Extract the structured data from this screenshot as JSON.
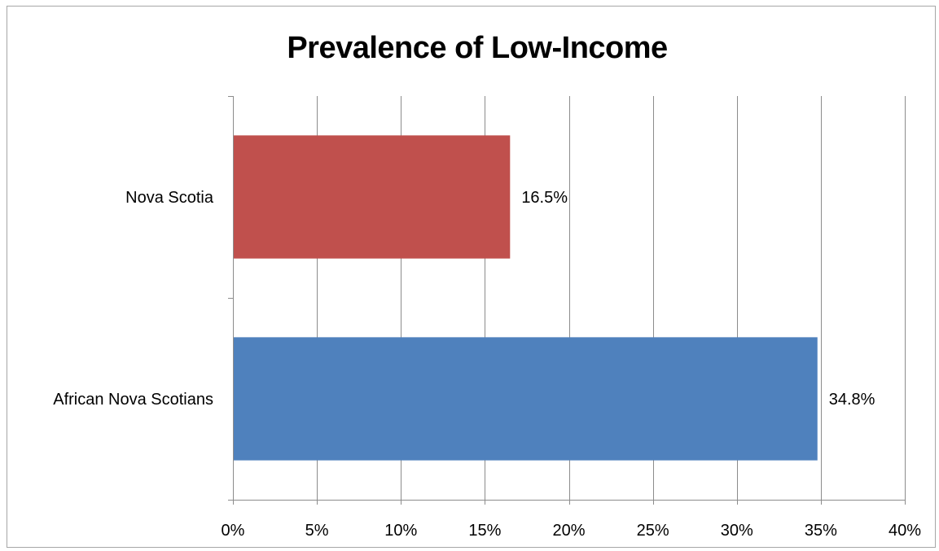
{
  "chart_data": {
    "type": "bar",
    "orientation": "horizontal",
    "title": "Prevalence of Low-Income",
    "xlabel": "",
    "ylabel": "",
    "categories": [
      "Nova Scotia",
      "African Nova Scotians"
    ],
    "values": [
      16.5,
      34.8
    ],
    "data_labels": [
      "16.5%",
      "34.8%"
    ],
    "colors": [
      "#C0504D",
      "#4F81BD"
    ],
    "xlim": [
      0,
      40
    ],
    "x_ticks": [
      0,
      5,
      10,
      15,
      20,
      25,
      30,
      35,
      40
    ],
    "x_tick_labels": [
      "0%",
      "5%",
      "10%",
      "15%",
      "20%",
      "25%",
      "30%",
      "35%",
      "40%"
    ],
    "grid": "vertical",
    "legend": "none"
  }
}
